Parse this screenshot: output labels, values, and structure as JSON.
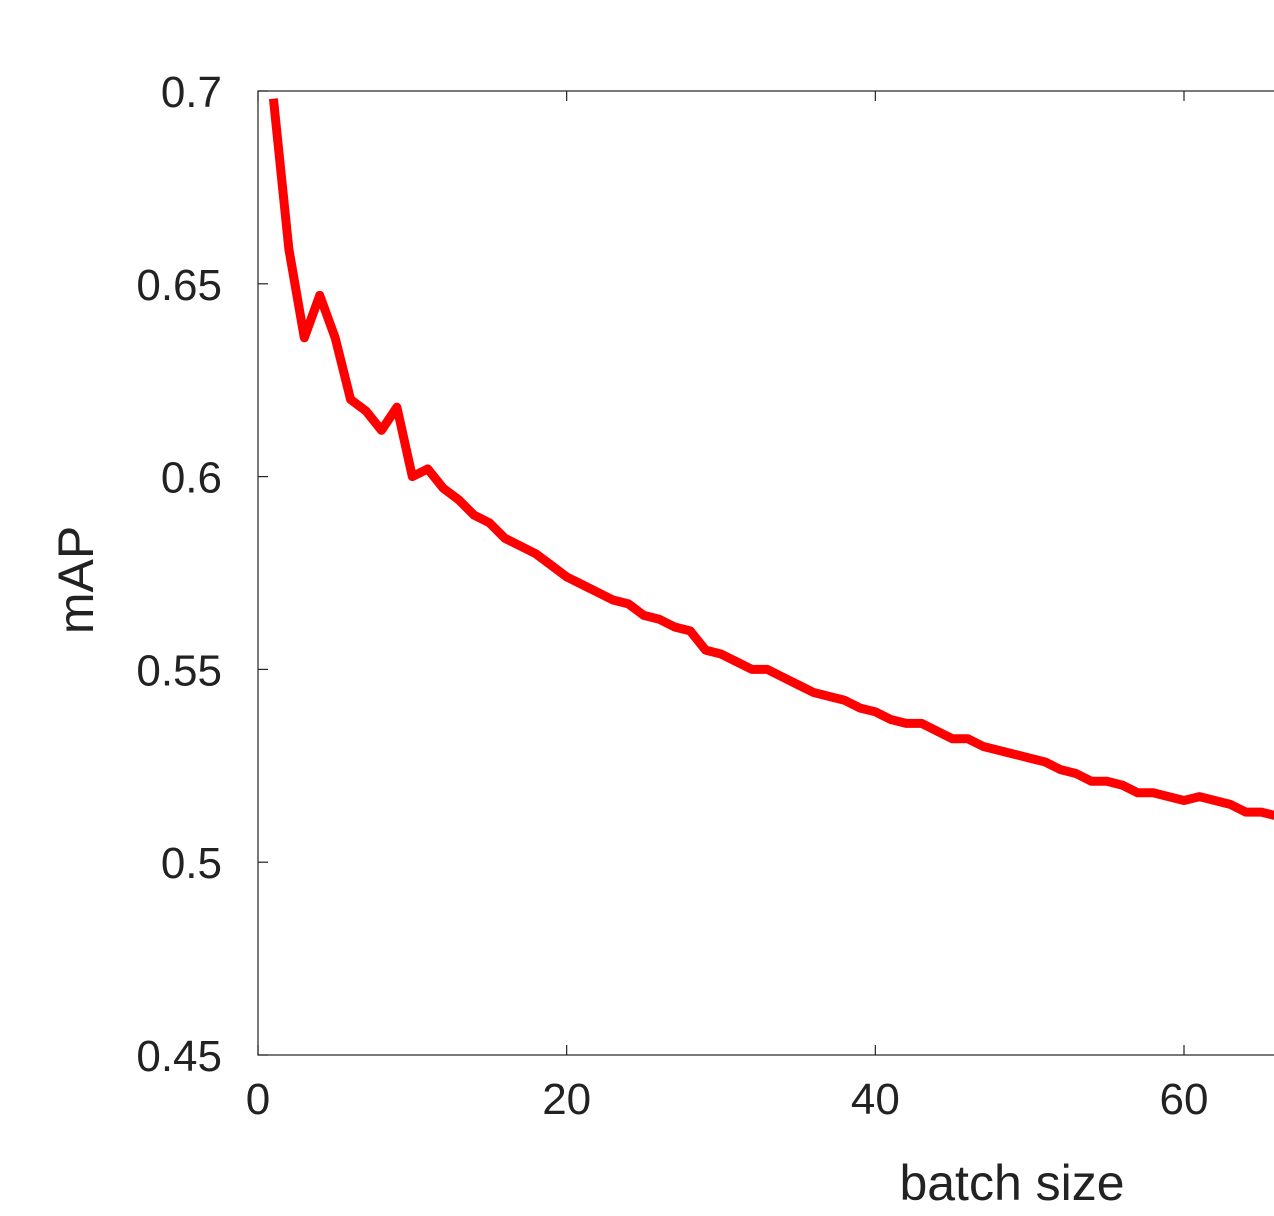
{
  "chart_data": {
    "type": "line",
    "xlabel": "batch size",
    "ylabel": "mAP",
    "x": [
      1,
      2,
      3,
      4,
      5,
      6,
      7,
      8,
      9,
      10,
      11,
      12,
      13,
      14,
      15,
      16,
      17,
      18,
      19,
      20,
      21,
      22,
      23,
      24,
      25,
      26,
      27,
      28,
      29,
      30,
      31,
      32,
      33,
      34,
      35,
      36,
      37,
      38,
      39,
      40,
      41,
      42,
      43,
      44,
      45,
      46,
      47,
      48,
      49,
      50,
      51,
      52,
      53,
      54,
      55,
      56,
      57,
      58,
      59,
      60,
      61,
      62,
      63,
      64,
      65,
      66
    ],
    "series": [
      {
        "name": "mAP",
        "color": "#ff0000",
        "values": [
          0.698,
          0.659,
          0.636,
          0.647,
          0.636,
          0.62,
          0.617,
          0.612,
          0.618,
          0.6,
          0.602,
          0.597,
          0.594,
          0.59,
          0.588,
          0.584,
          0.582,
          0.58,
          0.577,
          0.574,
          0.572,
          0.57,
          0.568,
          0.567,
          0.564,
          0.563,
          0.561,
          0.56,
          0.555,
          0.554,
          0.552,
          0.55,
          0.55,
          0.548,
          0.546,
          0.544,
          0.543,
          0.542,
          0.54,
          0.539,
          0.537,
          0.536,
          0.536,
          0.534,
          0.532,
          0.532,
          0.53,
          0.529,
          0.528,
          0.527,
          0.526,
          0.524,
          0.523,
          0.521,
          0.521,
          0.52,
          0.518,
          0.518,
          0.517,
          0.516,
          0.517,
          0.516,
          0.515,
          0.513,
          0.513,
          0.512
        ]
      }
    ],
    "xlim": [
      0,
      66
    ],
    "xticks": [
      0,
      20,
      40,
      60
    ],
    "ylim": [
      0.45,
      0.7
    ],
    "yticks": [
      0.45,
      0.5,
      0.55,
      0.6,
      0.65,
      0.7
    ],
    "grid": false
  }
}
